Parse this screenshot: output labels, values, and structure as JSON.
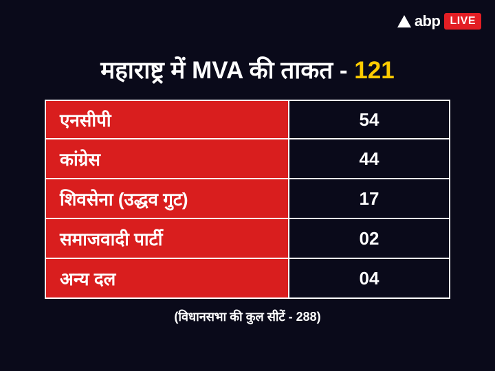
{
  "logo": {
    "brand_text": "abp",
    "live_text": "LIVE"
  },
  "title": {
    "main": "महाराष्ट्र में MVA की ताकत - ",
    "highlight": "121"
  },
  "table": {
    "type": "table",
    "background_color": "#0a0a1a",
    "party_cell_color": "#d91e1e",
    "seats_cell_color": "#0a0a1a",
    "border_color": "#ffffff",
    "text_color": "#ffffff",
    "font_size": 26,
    "rows": [
      {
        "party": "एनसीपी",
        "seats": "54"
      },
      {
        "party": "कांग्रेस",
        "seats": "44"
      },
      {
        "party": "शिवसेना (उद्धव गुट)",
        "seats": "17"
      },
      {
        "party": "समाजवादी पार्टी",
        "seats": "02"
      },
      {
        "party": "अन्य दल",
        "seats": "04"
      }
    ]
  },
  "footer_note": "(विधानसभा की कुल सीटें - 288)",
  "colors": {
    "background": "#0a0a1a",
    "primary_red": "#d91e1e",
    "live_red": "#e31e24",
    "highlight_yellow": "#ffcc00",
    "white": "#ffffff"
  }
}
